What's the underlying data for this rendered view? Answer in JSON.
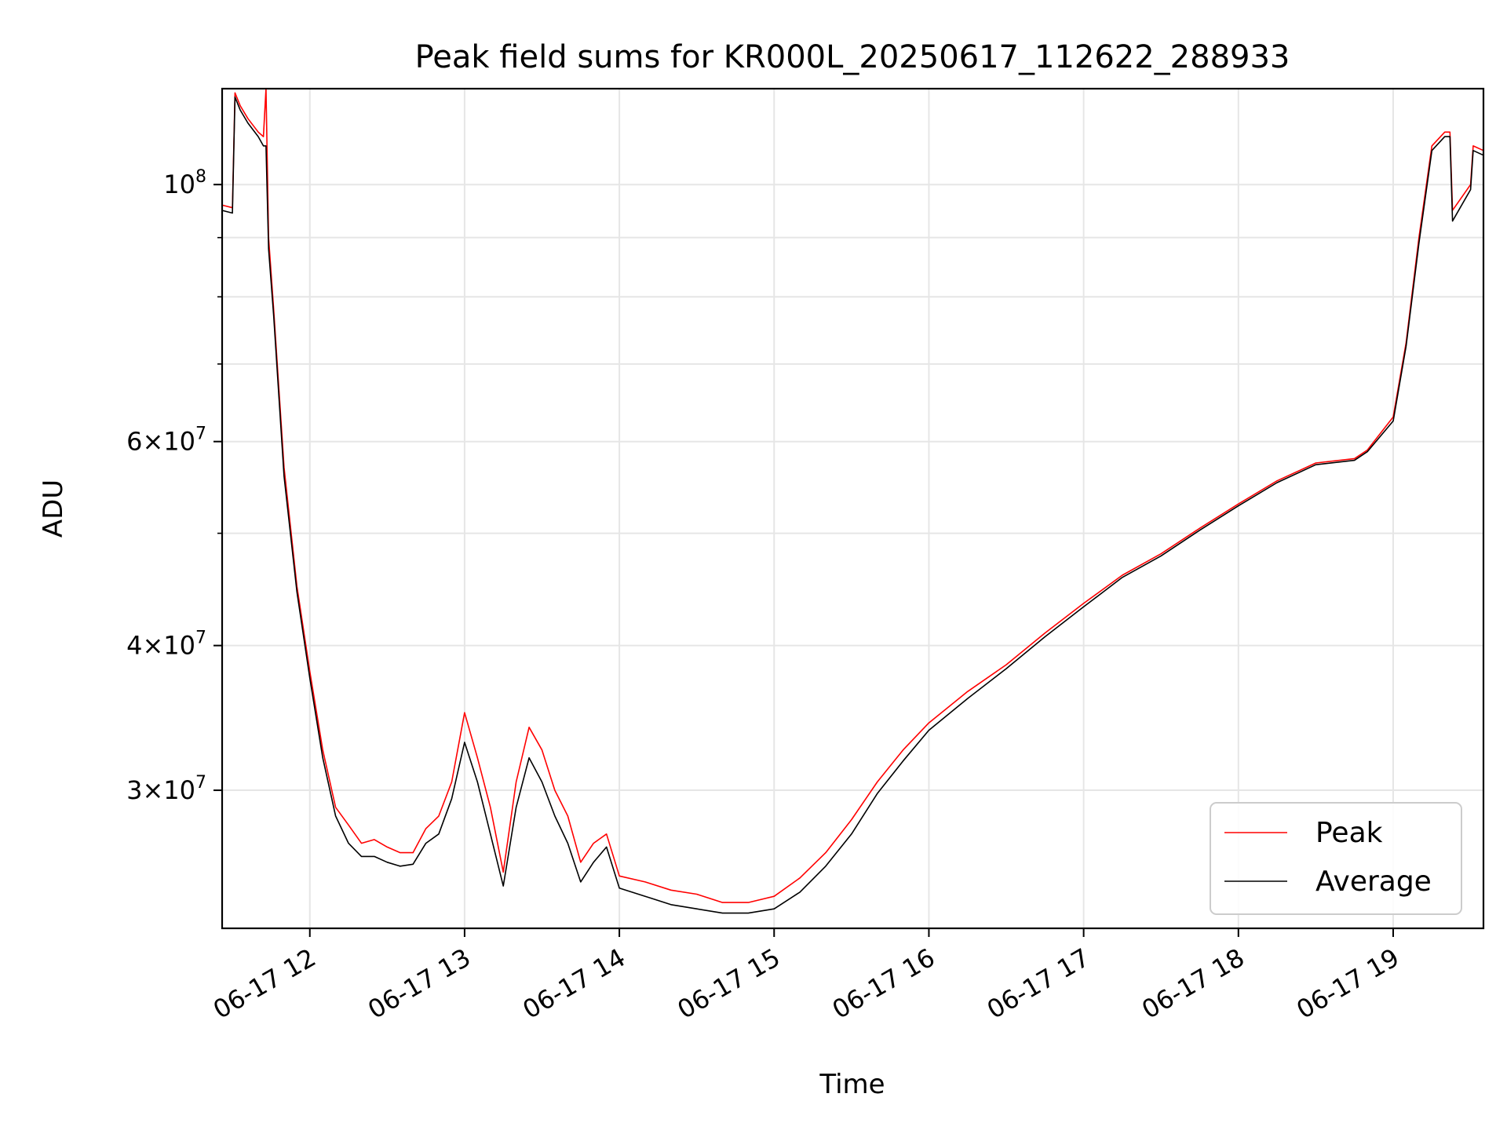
{
  "chart_data": {
    "type": "line",
    "title": "Peak field sums for KR000L_20250617_112622_288933",
    "xlabel": "Time",
    "ylabel": "ADU",
    "x_scale": "time",
    "y_scale": "log",
    "xlim": [
      "2025-06-17 11:26",
      "2025-06-17 19:35"
    ],
    "ylim": [
      22800000,
      121000000
    ],
    "grid": true,
    "legend_position": "lower right",
    "x_ticks": [
      {
        "label": "06-17 12",
        "time": "2025-06-17 12:00"
      },
      {
        "label": "06-17 13",
        "time": "2025-06-17 13:00"
      },
      {
        "label": "06-17 14",
        "time": "2025-06-17 14:00"
      },
      {
        "label": "06-17 15",
        "time": "2025-06-17 15:00"
      },
      {
        "label": "06-17 16",
        "time": "2025-06-17 16:00"
      },
      {
        "label": "06-17 17",
        "time": "2025-06-17 17:00"
      },
      {
        "label": "06-17 18",
        "time": "2025-06-17 18:00"
      },
      {
        "label": "06-17 19",
        "time": "2025-06-17 19:00"
      }
    ],
    "y_ticks": [
      {
        "base": "3",
        "exp": "7",
        "value": 30000000
      },
      {
        "base": "4",
        "exp": "7",
        "value": 40000000
      },
      {
        "base": "6",
        "exp": "7",
        "value": 60000000
      },
      {
        "base": "",
        "exp": "8",
        "value": 100000000
      }
    ],
    "y_minor_ticks": [
      50000000,
      70000000,
      80000000,
      90000000
    ],
    "series": [
      {
        "name": "Peak",
        "color": "#ff0000",
        "x": [
          "2025-06-17 11:26",
          "2025-06-17 11:30",
          "2025-06-17 11:31",
          "2025-06-17 11:33",
          "2025-06-17 11:36",
          "2025-06-17 11:40",
          "2025-06-17 11:42",
          "2025-06-17 11:43",
          "2025-06-17 11:44",
          "2025-06-17 11:46",
          "2025-06-17 11:50",
          "2025-06-17 11:55",
          "2025-06-17 12:00",
          "2025-06-17 12:05",
          "2025-06-17 12:10",
          "2025-06-17 12:15",
          "2025-06-17 12:20",
          "2025-06-17 12:25",
          "2025-06-17 12:30",
          "2025-06-17 12:35",
          "2025-06-17 12:40",
          "2025-06-17 12:45",
          "2025-06-17 12:50",
          "2025-06-17 12:55",
          "2025-06-17 13:00",
          "2025-06-17 13:05",
          "2025-06-17 13:10",
          "2025-06-17 13:15",
          "2025-06-17 13:20",
          "2025-06-17 13:25",
          "2025-06-17 13:30",
          "2025-06-17 13:35",
          "2025-06-17 13:40",
          "2025-06-17 13:45",
          "2025-06-17 13:50",
          "2025-06-17 13:55",
          "2025-06-17 14:00",
          "2025-06-17 14:10",
          "2025-06-17 14:20",
          "2025-06-17 14:30",
          "2025-06-17 14:40",
          "2025-06-17 14:50",
          "2025-06-17 15:00",
          "2025-06-17 15:10",
          "2025-06-17 15:20",
          "2025-06-17 15:30",
          "2025-06-17 15:40",
          "2025-06-17 15:50",
          "2025-06-17 16:00",
          "2025-06-17 16:15",
          "2025-06-17 16:30",
          "2025-06-17 16:45",
          "2025-06-17 17:00",
          "2025-06-17 17:15",
          "2025-06-17 17:30",
          "2025-06-17 17:45",
          "2025-06-17 18:00",
          "2025-06-17 18:15",
          "2025-06-17 18:30",
          "2025-06-17 18:45",
          "2025-06-17 18:50",
          "2025-06-17 19:00",
          "2025-06-17 19:05",
          "2025-06-17 19:10",
          "2025-06-17 19:15",
          "2025-06-17 19:20",
          "2025-06-17 19:22",
          "2025-06-17 19:23",
          "2025-06-17 19:30",
          "2025-06-17 19:31",
          "2025-06-17 19:35"
        ],
        "y": [
          96000000,
          95500000,
          120000000,
          117000000,
          114000000,
          111000000,
          110000000,
          121000000,
          90000000,
          78000000,
          57000000,
          45000000,
          38000000,
          32500000,
          29000000,
          28000000,
          27000000,
          27200000,
          26800000,
          26500000,
          26500000,
          27800000,
          28500000,
          30500000,
          35000000,
          32000000,
          29000000,
          25500000,
          30500000,
          34000000,
          32500000,
          30000000,
          28500000,
          26000000,
          27000000,
          27500000,
          25300000,
          25000000,
          24600000,
          24400000,
          24000000,
          24000000,
          24300000,
          25200000,
          26500000,
          28300000,
          30500000,
          32500000,
          34300000,
          36500000,
          38500000,
          41000000,
          43500000,
          46000000,
          48000000,
          50500000,
          53000000,
          55500000,
          57500000,
          58000000,
          59000000,
          63000000,
          73000000,
          90000000,
          108000000,
          111000000,
          111000000,
          95000000,
          100000000,
          108000000,
          107000000
        ]
      },
      {
        "name": "Average",
        "color": "#000000",
        "x": [
          "2025-06-17 11:26",
          "2025-06-17 11:30",
          "2025-06-17 11:31",
          "2025-06-17 11:33",
          "2025-06-17 11:36",
          "2025-06-17 11:40",
          "2025-06-17 11:42",
          "2025-06-17 11:43",
          "2025-06-17 11:44",
          "2025-06-17 11:46",
          "2025-06-17 11:50",
          "2025-06-17 11:55",
          "2025-06-17 12:00",
          "2025-06-17 12:05",
          "2025-06-17 12:10",
          "2025-06-17 12:15",
          "2025-06-17 12:20",
          "2025-06-17 12:25",
          "2025-06-17 12:30",
          "2025-06-17 12:35",
          "2025-06-17 12:40",
          "2025-06-17 12:45",
          "2025-06-17 12:50",
          "2025-06-17 12:55",
          "2025-06-17 13:00",
          "2025-06-17 13:05",
          "2025-06-17 13:10",
          "2025-06-17 13:15",
          "2025-06-17 13:20",
          "2025-06-17 13:25",
          "2025-06-17 13:30",
          "2025-06-17 13:35",
          "2025-06-17 13:40",
          "2025-06-17 13:45",
          "2025-06-17 13:50",
          "2025-06-17 13:55",
          "2025-06-17 14:00",
          "2025-06-17 14:10",
          "2025-06-17 14:20",
          "2025-06-17 14:30",
          "2025-06-17 14:40",
          "2025-06-17 14:50",
          "2025-06-17 15:00",
          "2025-06-17 15:10",
          "2025-06-17 15:20",
          "2025-06-17 15:30",
          "2025-06-17 15:40",
          "2025-06-17 15:50",
          "2025-06-17 16:00",
          "2025-06-17 16:15",
          "2025-06-17 16:30",
          "2025-06-17 16:45",
          "2025-06-17 17:00",
          "2025-06-17 17:15",
          "2025-06-17 17:30",
          "2025-06-17 17:45",
          "2025-06-17 18:00",
          "2025-06-17 18:15",
          "2025-06-17 18:30",
          "2025-06-17 18:45",
          "2025-06-17 18:50",
          "2025-06-17 19:00",
          "2025-06-17 19:05",
          "2025-06-17 19:10",
          "2025-06-17 19:15",
          "2025-06-17 19:20",
          "2025-06-17 19:22",
          "2025-06-17 19:23",
          "2025-06-17 19:30",
          "2025-06-17 19:31",
          "2025-06-17 19:35"
        ],
        "y": [
          95000000,
          94500000,
          119000000,
          116000000,
          113000000,
          110000000,
          108000000,
          108000000,
          88000000,
          77000000,
          56000000,
          44500000,
          37500000,
          32000000,
          28500000,
          27000000,
          26300000,
          26300000,
          26000000,
          25800000,
          25900000,
          27000000,
          27500000,
          29500000,
          33000000,
          30500000,
          27500000,
          24800000,
          29000000,
          32000000,
          30500000,
          28500000,
          27000000,
          25000000,
          26000000,
          26800000,
          24700000,
          24300000,
          23900000,
          23700000,
          23500000,
          23500000,
          23700000,
          24500000,
          25800000,
          27500000,
          29800000,
          31800000,
          33800000,
          36000000,
          38200000,
          40700000,
          43200000,
          45800000,
          47800000,
          50300000,
          52800000,
          55300000,
          57300000,
          57800000,
          58800000,
          62500000,
          72500000,
          89000000,
          107000000,
          110000000,
          110000000,
          93000000,
          99000000,
          107000000,
          106000000
        ]
      }
    ]
  }
}
